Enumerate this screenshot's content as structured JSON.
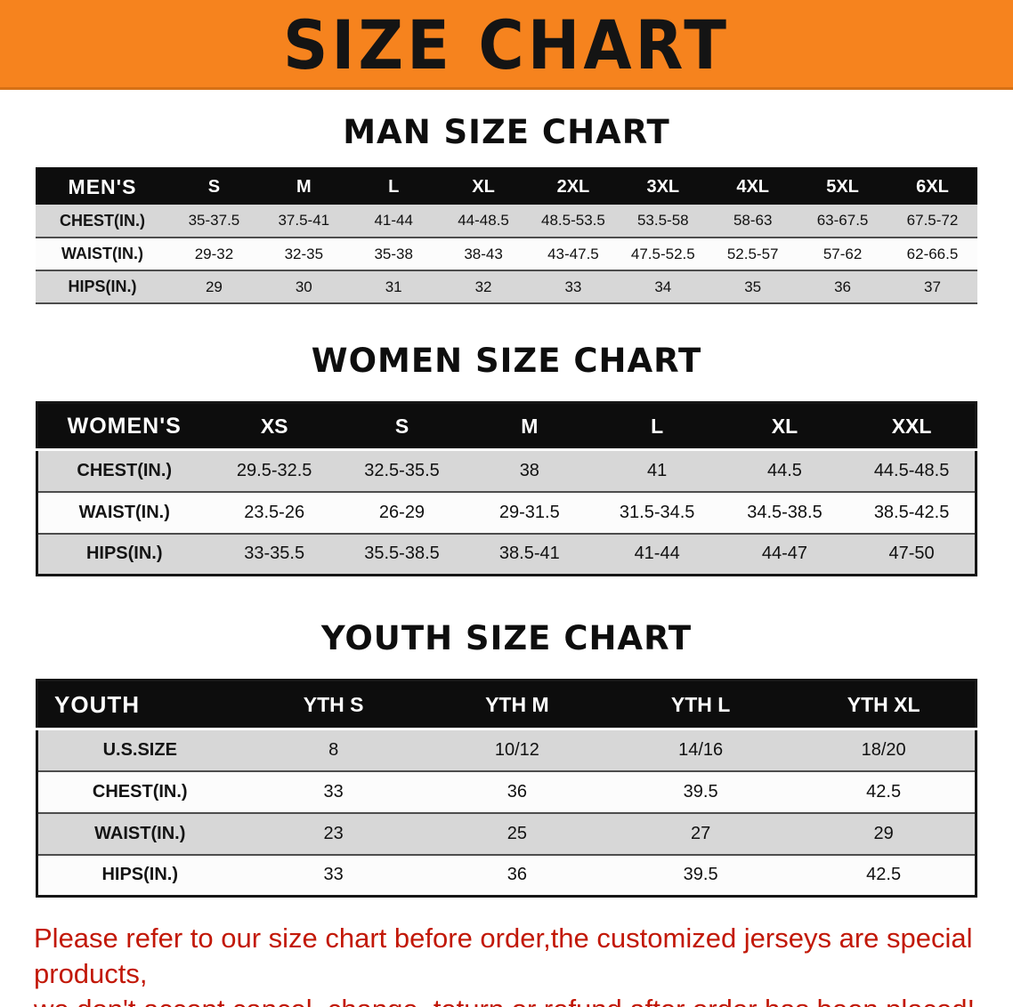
{
  "banner": {
    "title": "SIZE CHART",
    "bg_color": "#f6831e",
    "text_color": "#141414"
  },
  "sections": [
    {
      "heading": "MAN SIZE CHART",
      "corner_label": "MEN'S",
      "columns": [
        "S",
        "M",
        "L",
        "XL",
        "2XL",
        "3XL",
        "4XL",
        "5XL",
        "6XL"
      ],
      "rows": [
        {
          "label": "CHEST(IN.)",
          "values": [
            "35-37.5",
            "37.5-41",
            "41-44",
            "44-48.5",
            "48.5-53.5",
            "53.5-58",
            "58-63",
            "63-67.5",
            "67.5-72"
          ]
        },
        {
          "label": "WAIST(IN.)",
          "values": [
            "29-32",
            "32-35",
            "35-38",
            "38-43",
            "43-47.5",
            "47.5-52.5",
            "52.5-57",
            "57-62",
            "62-66.5"
          ]
        },
        {
          "label": "HIPS(IN.)",
          "values": [
            "29",
            "30",
            "31",
            "32",
            "33",
            "34",
            "35",
            "36",
            "37"
          ]
        }
      ]
    },
    {
      "heading": "WOMEN SIZE CHART",
      "corner_label": "WOMEN'S",
      "columns": [
        "XS",
        "S",
        "M",
        "L",
        "XL",
        "XXL"
      ],
      "rows": [
        {
          "label": "CHEST(IN.)",
          "values": [
            "29.5-32.5",
            "32.5-35.5",
            "38",
            "41",
            "44.5",
            "44.5-48.5"
          ]
        },
        {
          "label": "WAIST(IN.)",
          "values": [
            "23.5-26",
            "26-29",
            "29-31.5",
            "31.5-34.5",
            "34.5-38.5",
            "38.5-42.5"
          ]
        },
        {
          "label": "HIPS(IN.)",
          "values": [
            "33-35.5",
            "35.5-38.5",
            "38.5-41",
            "41-44",
            "44-47",
            "47-50"
          ]
        }
      ]
    },
    {
      "heading": "YOUTH SIZE CHART",
      "corner_label": "YOUTH",
      "columns": [
        "YTH S",
        "YTH M",
        "YTH L",
        "YTH XL"
      ],
      "rows": [
        {
          "label": "U.S.SIZE",
          "values": [
            "8",
            "10/12",
            "14/16",
            "18/20"
          ]
        },
        {
          "label": "CHEST(IN.)",
          "values": [
            "33",
            "36",
            "39.5",
            "42.5"
          ]
        },
        {
          "label": "WAIST(IN.)",
          "values": [
            "23",
            "25",
            "27",
            "29"
          ]
        },
        {
          "label": "HIPS(IN.)",
          "values": [
            "33",
            "36",
            "39.5",
            "42.5"
          ]
        }
      ]
    }
  ],
  "footer": {
    "line1": "Please refer to our size chart before order,the customized jerseys are special products,",
    "line2": "we don't accept cancel, change, teturn or refund after order has been placed!",
    "text_color": "#c21807"
  }
}
